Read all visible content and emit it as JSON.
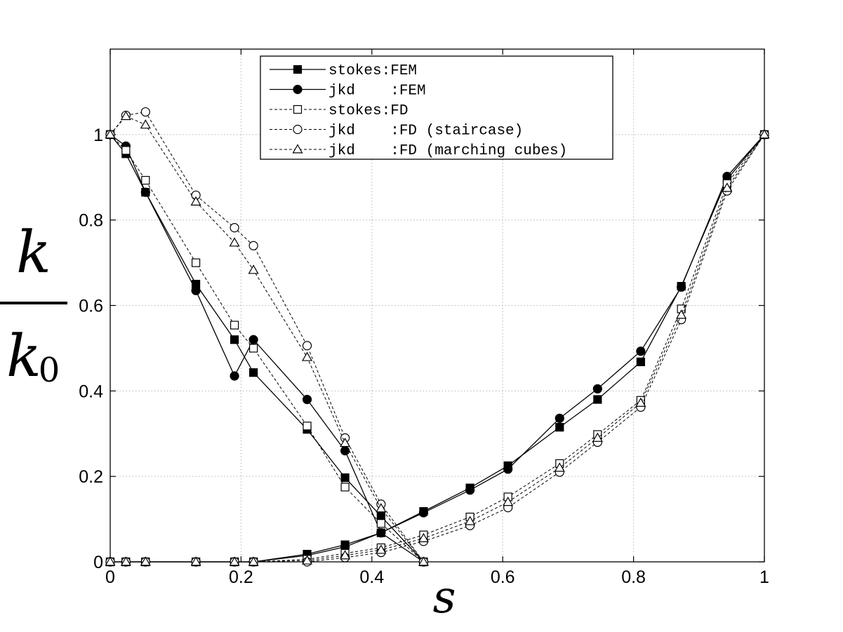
{
  "chart_data": {
    "type": "line",
    "xlabel": "s",
    "ylabel": {
      "numerator": "k",
      "denominator": "k",
      "denominator_subscript": "0"
    },
    "xlim": [
      0,
      1
    ],
    "ylim": [
      0,
      1.2
    ],
    "xticks": [
      0,
      0.2,
      0.4,
      0.6,
      0.8,
      1
    ],
    "xtick_labels": [
      "0",
      "0.2",
      "0.4",
      "0.6",
      "0.8",
      "1"
    ],
    "yticks": [
      0,
      0.2,
      0.4,
      0.6,
      0.8,
      1
    ],
    "ytick_labels": [
      "0",
      "0.2",
      "0.4",
      "0.6",
      "0.8",
      "1"
    ],
    "grid": true,
    "legend_position": "top-center",
    "series": [
      {
        "name": "stokes:FEM",
        "marker": "square-filled",
        "line": "solid",
        "branches": [
          {
            "x": [
              0,
              0.024,
              0.054,
              0.131,
              0.19,
              0.219,
              0.301,
              0.359,
              0.414,
              0.479
            ],
            "y": [
              1,
              0.955,
              0.865,
              0.65,
              0.52,
              0.443,
              0.31,
              0.197,
              0.107,
              0
            ]
          },
          {
            "x": [
              0,
              0.024,
              0.054,
              0.131,
              0.19,
              0.219,
              0.301,
              0.359,
              0.414,
              0.479,
              0.55,
              0.608,
              0.687,
              0.745,
              0.811,
              0.873,
              0.943,
              1
            ],
            "y": [
              0,
              0,
              0,
              0,
              0,
              0,
              0.018,
              0.04,
              0.068,
              0.118,
              0.173,
              0.225,
              0.315,
              0.38,
              0.468,
              0.645,
              0.895,
              1
            ]
          }
        ]
      },
      {
        "name": "jkd    :FEM",
        "marker": "circle-filled",
        "line": "solid",
        "branches": [
          {
            "x": [
              0,
              0.024,
              0.054,
              0.131,
              0.19,
              0.219,
              0.301,
              0.359,
              0.414,
              0.479
            ],
            "y": [
              1,
              0.973,
              0.865,
              0.635,
              0.435,
              0.52,
              0.38,
              0.26,
              0.068,
              0
            ]
          },
          {
            "x": [
              0,
              0.024,
              0.054,
              0.131,
              0.19,
              0.219,
              0.301,
              0.359,
              0.414,
              0.479,
              0.55,
              0.608,
              0.687,
              0.745,
              0.811,
              0.873,
              0.943,
              1
            ],
            "y": [
              0,
              0,
              0,
              0,
              0,
              0,
              0.015,
              0.035,
              0.068,
              0.115,
              0.168,
              0.217,
              0.336,
              0.405,
              0.493,
              0.643,
              0.902,
              1
            ]
          }
        ]
      },
      {
        "name": "stokes:FD",
        "marker": "square-open",
        "line": "dashed",
        "branches": [
          {
            "x": [
              0,
              0.024,
              0.054,
              0.131,
              0.19,
              0.219,
              0.301,
              0.359,
              0.414,
              0.479
            ],
            "y": [
              1,
              0.963,
              0.893,
              0.7,
              0.554,
              0.5,
              0.318,
              0.175,
              0.09,
              0
            ]
          },
          {
            "x": [
              0,
              0.024,
              0.054,
              0.131,
              0.19,
              0.219,
              0.301,
              0.359,
              0.414,
              0.479,
              0.55,
              0.608,
              0.687,
              0.745,
              0.811,
              0.873,
              0.943,
              1
            ],
            "y": [
              0,
              0,
              0,
              0,
              0,
              0,
              0.006,
              0.02,
              0.033,
              0.063,
              0.105,
              0.152,
              0.23,
              0.298,
              0.378,
              0.592,
              0.885,
              1
            ]
          }
        ]
      },
      {
        "name": "jkd    :FD (staircase)",
        "marker": "circle-open",
        "line": "dashed",
        "branches": [
          {
            "x": [
              0,
              0.024,
              0.054,
              0.131,
              0.19,
              0.219,
              0.301,
              0.359,
              0.414,
              0.479
            ],
            "y": [
              1,
              1.045,
              1.053,
              0.858,
              0.782,
              0.74,
              0.506,
              0.29,
              0.135,
              0
            ]
          },
          {
            "x": [
              0,
              0.024,
              0.054,
              0.131,
              0.19,
              0.219,
              0.301,
              0.359,
              0.414,
              0.479,
              0.55,
              0.608,
              0.687,
              0.745,
              0.811,
              0.873,
              0.943,
              1
            ],
            "y": [
              0,
              0,
              0,
              0,
              0,
              0,
              0,
              0.01,
              0.022,
              0.048,
              0.085,
              0.127,
              0.21,
              0.28,
              0.362,
              0.567,
              0.868,
              1
            ]
          }
        ]
      },
      {
        "name": "jkd    :FD (marching cubes)",
        "marker": "triangle-open",
        "line": "dashed",
        "branches": [
          {
            "x": [
              0,
              0.024,
              0.054,
              0.131,
              0.19,
              0.219,
              0.301,
              0.359,
              0.414,
              0.479
            ],
            "y": [
              1,
              1.043,
              1.023,
              0.843,
              0.747,
              0.683,
              0.479,
              0.278,
              0.125,
              0
            ]
          },
          {
            "x": [
              0,
              0.024,
              0.054,
              0.131,
              0.19,
              0.219,
              0.301,
              0.359,
              0.414,
              0.479,
              0.55,
              0.608,
              0.687,
              0.745,
              0.811,
              0.873,
              0.943,
              1
            ],
            "y": [
              0,
              0,
              0,
              0,
              0,
              0,
              0.003,
              0.015,
              0.028,
              0.055,
              0.095,
              0.14,
              0.22,
              0.29,
              0.372,
              0.578,
              0.875,
              1
            ]
          }
        ]
      }
    ]
  }
}
